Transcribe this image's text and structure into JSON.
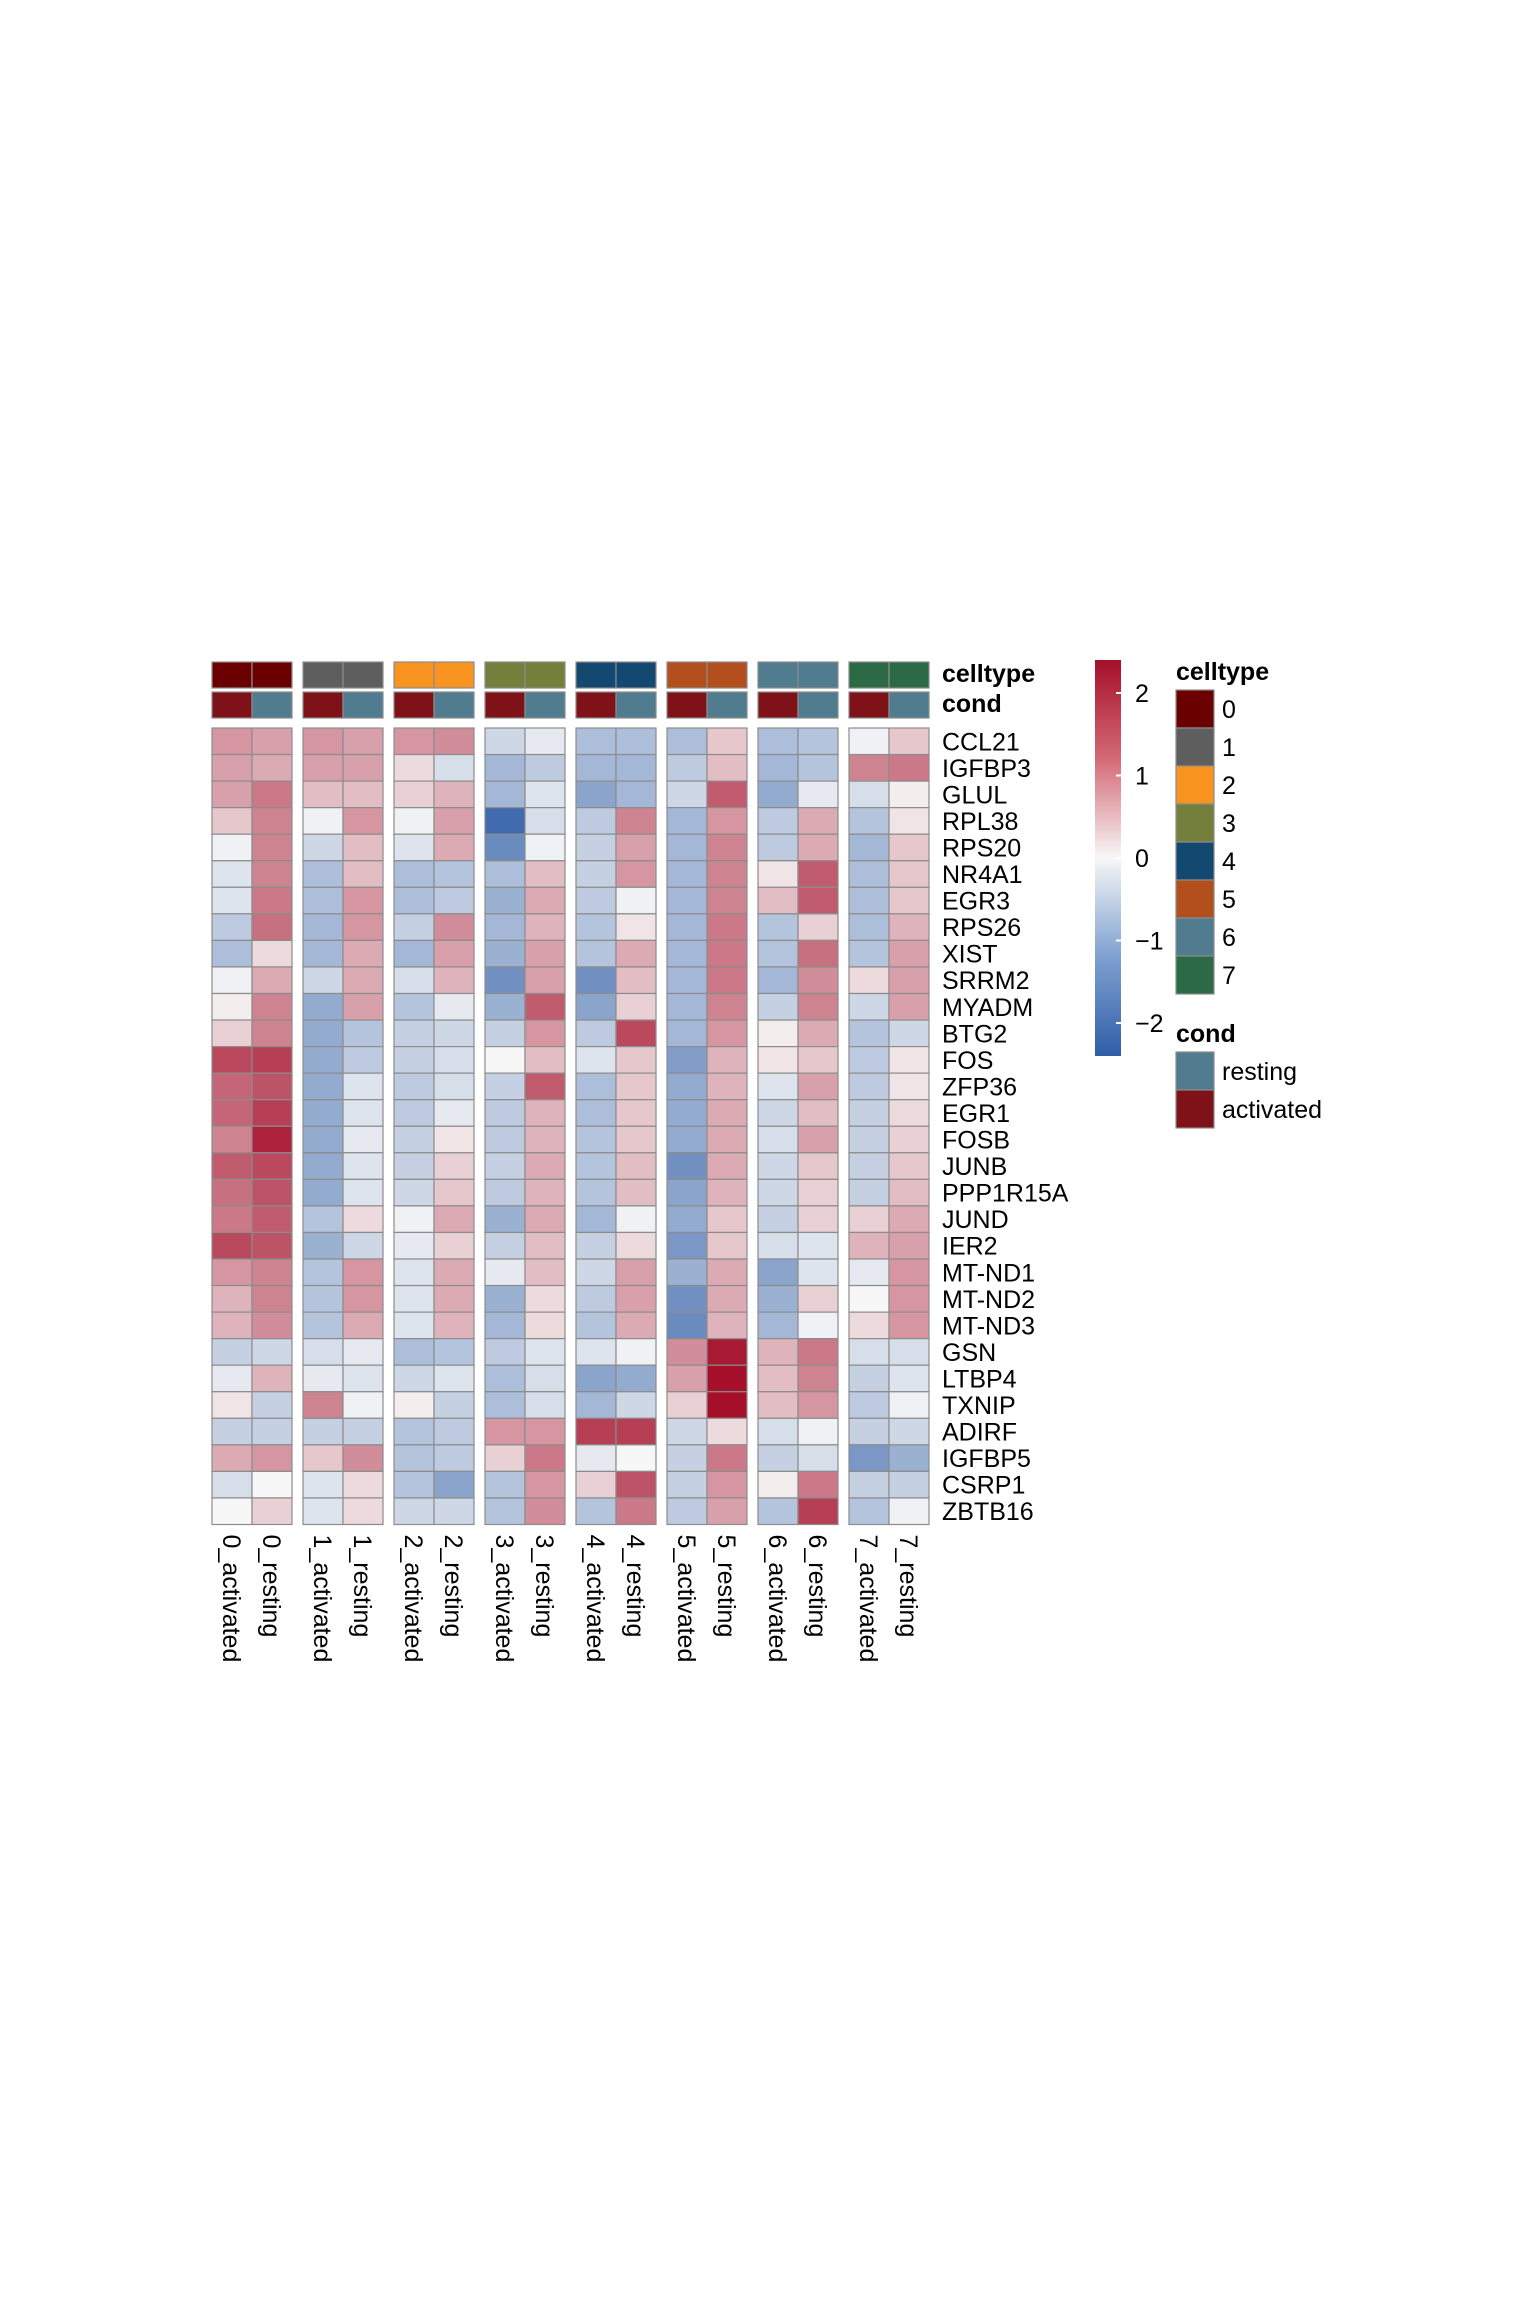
{
  "chart_data": {
    "type": "heatmap",
    "columns": [
      "0_activated",
      "0_resting",
      "1_activated",
      "1_resting",
      "2_activated",
      "2_resting",
      "3_activated",
      "3_resting",
      "4_activated",
      "4_resting",
      "5_activated",
      "5_resting",
      "6_activated",
      "6_resting",
      "7_activated",
      "7_resting"
    ],
    "column_celltype": [
      "0",
      "0",
      "1",
      "1",
      "2",
      "2",
      "3",
      "3",
      "4",
      "4",
      "5",
      "5",
      "6",
      "6",
      "7",
      "7"
    ],
    "column_cond": [
      "activated",
      "resting",
      "activated",
      "resting",
      "activated",
      "resting",
      "activated",
      "resting",
      "activated",
      "resting",
      "activated",
      "resting",
      "activated",
      "resting",
      "activated",
      "resting"
    ],
    "annotation_row_labels": [
      "celltype",
      "cond"
    ],
    "rows": [
      "CCL21",
      "IGFBP3",
      "GLUL",
      "RPL38",
      "RPS20",
      "NR4A1",
      "EGR3",
      "RPS26",
      "XIST",
      "SRRM2",
      "MYADM",
      "BTG2",
      "FOS",
      "ZFP36",
      "EGR1",
      "FOSB",
      "JUNB",
      "PPP1R15A",
      "JUND",
      "IER2",
      "MT-ND1",
      "MT-ND2",
      "MT-ND3",
      "GSN",
      "LTBP4",
      "TXNIP",
      "ADIRF",
      "IGFBP5",
      "CSRP1",
      "ZBTB16"
    ],
    "values": [
      [
        1.0,
        0.9,
        1.0,
        0.9,
        1.0,
        1.1,
        -0.5,
        -0.2,
        -0.9,
        -0.9,
        -0.9,
        0.5,
        -0.9,
        -0.8,
        -0.1,
        0.5
      ],
      [
        0.9,
        0.8,
        0.9,
        0.9,
        0.3,
        -0.4,
        -1.0,
        -0.7,
        -1.0,
        -1.0,
        -0.7,
        0.6,
        -1.0,
        -0.8,
        1.2,
        1.3
      ],
      [
        0.9,
        1.3,
        0.6,
        0.6,
        0.4,
        0.7,
        -1.0,
        -0.3,
        -1.3,
        -1.0,
        -0.5,
        1.6,
        -1.2,
        -0.2,
        -0.4,
        0.1
      ],
      [
        0.5,
        1.2,
        -0.1,
        1.0,
        -0.1,
        0.9,
        -2.2,
        -0.4,
        -0.7,
        1.2,
        -1.0,
        1.0,
        -0.7,
        0.8,
        -0.8,
        0.2
      ],
      [
        -0.1,
        1.2,
        -0.5,
        0.6,
        -0.3,
        0.8,
        -1.7,
        -0.1,
        -0.6,
        0.9,
        -1.0,
        1.2,
        -0.7,
        0.8,
        -1.0,
        0.5
      ],
      [
        -0.3,
        1.2,
        -0.9,
        0.6,
        -0.9,
        -0.8,
        -0.9,
        0.6,
        -0.6,
        1.0,
        -1.0,
        1.2,
        0.2,
        1.6,
        -0.9,
        0.5
      ],
      [
        -0.3,
        1.3,
        -0.9,
        1.0,
        -0.9,
        -0.7,
        -1.1,
        0.8,
        -0.7,
        -0.1,
        -1.0,
        1.2,
        0.6,
        1.6,
        -0.9,
        0.5
      ],
      [
        -0.7,
        1.4,
        -1.0,
        1.0,
        -0.6,
        1.1,
        -1.0,
        0.7,
        -0.8,
        0.2,
        -1.0,
        1.3,
        -0.8,
        0.4,
        -0.9,
        0.7
      ],
      [
        -0.9,
        0.3,
        -1.0,
        0.8,
        -1.0,
        0.9,
        -1.1,
        0.9,
        -0.8,
        0.8,
        -1.0,
        1.3,
        -0.8,
        1.4,
        -0.8,
        0.9
      ],
      [
        -0.1,
        0.8,
        -0.5,
        0.8,
        -0.4,
        0.7,
        -1.6,
        0.9,
        -1.6,
        0.6,
        -1.0,
        1.3,
        -1.0,
        1.1,
        0.3,
        0.9
      ],
      [
        0.1,
        1.2,
        -1.2,
        0.9,
        -0.8,
        -0.2,
        -1.1,
        1.6,
        -1.3,
        0.4,
        -1.0,
        1.2,
        -0.6,
        1.2,
        -0.5,
        0.9
      ],
      [
        0.4,
        1.2,
        -1.2,
        -0.8,
        -0.6,
        -0.5,
        -0.6,
        1.0,
        -0.7,
        1.8,
        -1.0,
        1.0,
        0.1,
        0.8,
        -0.8,
        -0.5
      ],
      [
        1.8,
        1.9,
        -1.2,
        -0.7,
        -0.6,
        -0.4,
        0.0,
        0.6,
        -0.3,
        0.5,
        -1.4,
        0.7,
        0.2,
        0.5,
        -0.7,
        0.2
      ],
      [
        1.5,
        1.7,
        -1.2,
        -0.3,
        -0.7,
        -0.4,
        -0.6,
        1.6,
        -0.9,
        0.5,
        -1.2,
        0.7,
        -0.3,
        0.9,
        -0.7,
        0.2
      ],
      [
        1.5,
        1.9,
        -1.2,
        -0.3,
        -0.7,
        -0.2,
        -0.7,
        0.7,
        -0.9,
        0.5,
        -1.2,
        0.8,
        -0.5,
        0.6,
        -0.6,
        0.3
      ],
      [
        1.2,
        2.2,
        -1.2,
        -0.2,
        -0.6,
        0.2,
        -0.7,
        0.7,
        -0.8,
        0.5,
        -1.2,
        0.8,
        -0.4,
        0.9,
        -0.6,
        0.4
      ],
      [
        1.6,
        1.8,
        -1.2,
        -0.3,
        -0.6,
        0.4,
        -0.6,
        0.8,
        -0.8,
        0.6,
        -1.6,
        0.8,
        -0.5,
        0.5,
        -0.6,
        0.5
      ],
      [
        1.4,
        1.7,
        -1.2,
        -0.3,
        -0.5,
        0.5,
        -0.7,
        0.7,
        -0.8,
        0.6,
        -1.3,
        0.7,
        -0.5,
        0.4,
        -0.6,
        0.6
      ],
      [
        1.3,
        1.6,
        -0.8,
        0.3,
        -0.1,
        0.8,
        -1.1,
        0.8,
        -1.0,
        -0.1,
        -1.2,
        0.5,
        -0.6,
        0.4,
        0.4,
        0.8
      ],
      [
        1.8,
        1.7,
        -1.1,
        -0.5,
        -0.2,
        0.4,
        -0.6,
        0.6,
        -0.6,
        0.3,
        -1.5,
        0.5,
        -0.4,
        -0.3,
        0.7,
        0.9
      ],
      [
        1.0,
        1.2,
        -0.8,
        1.0,
        -0.3,
        0.8,
        -0.2,
        0.6,
        -0.5,
        0.9,
        -1.1,
        0.8,
        -1.3,
        -0.3,
        -0.2,
        1.0
      ],
      [
        0.7,
        1.2,
        -0.8,
        1.0,
        -0.3,
        0.8,
        -1.1,
        0.3,
        -0.7,
        0.9,
        -1.6,
        0.8,
        -1.1,
        0.4,
        0.0,
        1.0
      ],
      [
        0.7,
        1.1,
        -0.8,
        0.8,
        -0.3,
        0.7,
        -1.0,
        0.3,
        -0.8,
        0.8,
        -1.7,
        0.7,
        -1.0,
        -0.1,
        0.3,
        1.0
      ],
      [
        -0.6,
        -0.5,
        -0.4,
        -0.2,
        -0.9,
        -0.8,
        -0.7,
        -0.3,
        -0.3,
        -0.1,
        1.1,
        2.3,
        0.7,
        1.3,
        -0.4,
        -0.4
      ],
      [
        -0.2,
        0.7,
        -0.2,
        -0.3,
        -0.5,
        -0.3,
        -0.9,
        -0.4,
        -1.3,
        -1.2,
        0.9,
        2.4,
        0.6,
        1.2,
        -0.6,
        -0.3
      ],
      [
        0.2,
        -0.6,
        1.2,
        -0.1,
        0.1,
        -0.6,
        -0.9,
        -0.4,
        -1.0,
        -0.5,
        0.4,
        2.4,
        0.6,
        1.0,
        -0.7,
        -0.1
      ],
      [
        -0.6,
        -0.6,
        -0.6,
        -0.6,
        -0.8,
        -0.7,
        1.0,
        1.0,
        1.9,
        1.9,
        -0.5,
        0.3,
        -0.4,
        -0.1,
        -0.6,
        -0.5
      ],
      [
        0.8,
        1.0,
        0.5,
        1.1,
        -0.8,
        -0.7,
        0.4,
        1.3,
        -0.2,
        0.0,
        -0.6,
        1.3,
        -0.6,
        -0.4,
        -1.5,
        -1.1
      ],
      [
        -0.4,
        0.0,
        -0.3,
        0.3,
        -0.8,
        -1.3,
        -0.8,
        1.0,
        0.4,
        1.7,
        -0.6,
        1.0,
        0.1,
        1.3,
        -0.6,
        -0.6
      ],
      [
        0.0,
        0.4,
        -0.3,
        0.3,
        -0.5,
        -0.5,
        -0.8,
        1.1,
        -0.8,
        1.3,
        -0.7,
        0.9,
        -0.8,
        1.9,
        -0.8,
        -0.1
      ]
    ],
    "colorbar": {
      "ticks": [
        2,
        1,
        0,
        -1,
        -2
      ],
      "range": [
        -2.4,
        2.4
      ]
    },
    "celltype_legend": {
      "title": "celltype",
      "items": [
        {
          "label": "0",
          "color": "#6B0000"
        },
        {
          "label": "1",
          "color": "#5E5E5E"
        },
        {
          "label": "2",
          "color": "#F8941F"
        },
        {
          "label": "3",
          "color": "#737F3A"
        },
        {
          "label": "4",
          "color": "#134870"
        },
        {
          "label": "5",
          "color": "#B24F1C"
        },
        {
          "label": "6",
          "color": "#517C8F"
        },
        {
          "label": "7",
          "color": "#2B6A45"
        }
      ]
    },
    "cond_legend": {
      "title": "cond",
      "items": [
        {
          "label": "resting",
          "color": "#517C8F"
        },
        {
          "label": "activated",
          "color": "#7E1218"
        }
      ]
    },
    "palette": {
      "low": "#2F5EA7",
      "mid": "#F7F7F7",
      "high": "#A50F2A"
    },
    "legend_placement": "right"
  }
}
